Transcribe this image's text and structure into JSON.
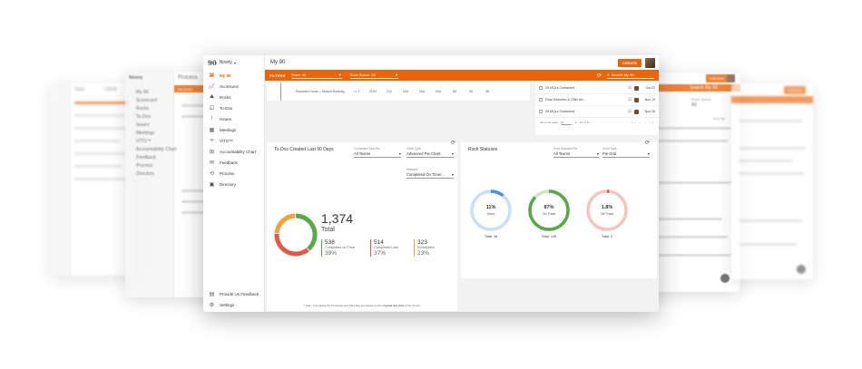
{
  "app": {
    "brand": "Ninety",
    "page_title": "My 90",
    "create_label": "CREATE",
    "user_avatar": "avatar"
  },
  "sidebar": {
    "items": [
      {
        "label": "My 90",
        "icon": "logo-icon",
        "active": true
      },
      {
        "label": "Scorecard",
        "icon": "chart-icon"
      },
      {
        "label": "Rocks",
        "icon": "rocks-icon"
      },
      {
        "label": "To-Dos",
        "icon": "checkbox-icon"
      },
      {
        "label": "Issues",
        "icon": "exclamation-icon"
      },
      {
        "label": "Meetings",
        "icon": "calendar-icon"
      },
      {
        "label": "V/TO™",
        "icon": "binoculars-icon"
      },
      {
        "label": "Accountability Chart",
        "icon": "org-chart-icon"
      },
      {
        "label": "Feedback",
        "icon": "chat-icon"
      },
      {
        "label": "Process",
        "icon": "process-icon"
      },
      {
        "label": "Directory",
        "icon": "directory-icon"
      }
    ],
    "bottom": [
      {
        "label": "Provide Us Feedback",
        "icon": "feedback-icon"
      },
      {
        "label": "Settings",
        "icon": "gear-icon"
      }
    ]
  },
  "filters": {
    "label": "FILTERS",
    "team_key": "Team",
    "team_value": "All",
    "rock_key": "Rock Status",
    "rock_value": "All",
    "search_placeholder": "Search My 90"
  },
  "scorecard_row": {
    "name": "Reported Hours > Search Ranking",
    "cells": [
      ">= 1",
      "75.67",
      "212",
      "N/A",
      "N/A",
      "N/A",
      "80",
      "95",
      "98"
    ]
  },
  "todo_list": {
    "items": [
      {
        "text": "25 MQLs Contacted",
        "date": "Oct 22"
      },
      {
        "text": "Final Selection & Offer Ne...",
        "date": "Nov 19"
      },
      {
        "text": "25 MQLs Contacted",
        "date": "Nov 26"
      }
    ],
    "pager": {
      "items_per_page_label": "Items per page:",
      "items_per_page": "10",
      "range": "1 – 10 of 10"
    }
  },
  "todos_chart": {
    "title": "To-Dos Created Last 90 Days",
    "sel1_label": "Completed Todo Per",
    "sel1_value": "All Teams",
    "sel2_label": "Chart Type",
    "sel2_value": "Advanced Pie Chart",
    "sel3_label": "Statuses",
    "sel3_value": "Completed On Time/...",
    "total_value": "1,374",
    "total_label": "Total",
    "stats": [
      {
        "num": "538",
        "label": "Completed on Time",
        "pct": "39%",
        "color": "#5aa84a"
      },
      {
        "num": "514",
        "label": "Completed Late",
        "pct": "37%",
        "color": "#e05a4a"
      },
      {
        "num": "323",
        "label": "Incomplete",
        "pct": "23%",
        "color": "#f0a13c"
      }
    ],
    "footnote_prefix": "* Note: Completed On Time/Late and Past Due are based on the ",
    "footnote_bold": "original due date",
    "footnote_suffix": " of the To-Do."
  },
  "rock_chart": {
    "title": "Rock Statuses",
    "sel1_label": "Rock Statuses Per",
    "sel1_value": "All Teams",
    "sel2_label": "Chart Type",
    "sel2_value": "Pie Grid",
    "rings": [
      {
        "pct": "11%",
        "label": "Done",
        "total": "Total: 19",
        "fraction": 0.11,
        "color": "#4a90e2",
        "track": "#c9dff7"
      },
      {
        "pct": "87%",
        "label": "On Track",
        "total": "Total: 149",
        "fraction": 0.87,
        "color": "#5aa84a",
        "track": "#cde6c6"
      },
      {
        "pct": "1.8%",
        "label": "Off Track",
        "total": "Total: 3",
        "fraction": 0.018,
        "color": "#e05a4a",
        "track": "#f5c6bf"
      }
    ]
  },
  "ghost_left": {
    "title": "Process",
    "brand": "Ninety",
    "filters_label": "FILTERS",
    "items": [
      "My 90",
      "Scorecard",
      "Rocks",
      "To-Dos",
      "Issues",
      "Meetings",
      "V/TO™",
      "Accountability Chart",
      "Feedback",
      "Process",
      "Directory"
    ]
  },
  "ghost_far_left": {
    "total_label": "Total",
    "data_label": "DATA"
  },
  "ghost_right": {
    "create_label": "CREATE",
    "search_placeholder": "Search My 90",
    "status_label": "Rock Status",
    "status_value": "All",
    "due_label": "Due By"
  }
}
